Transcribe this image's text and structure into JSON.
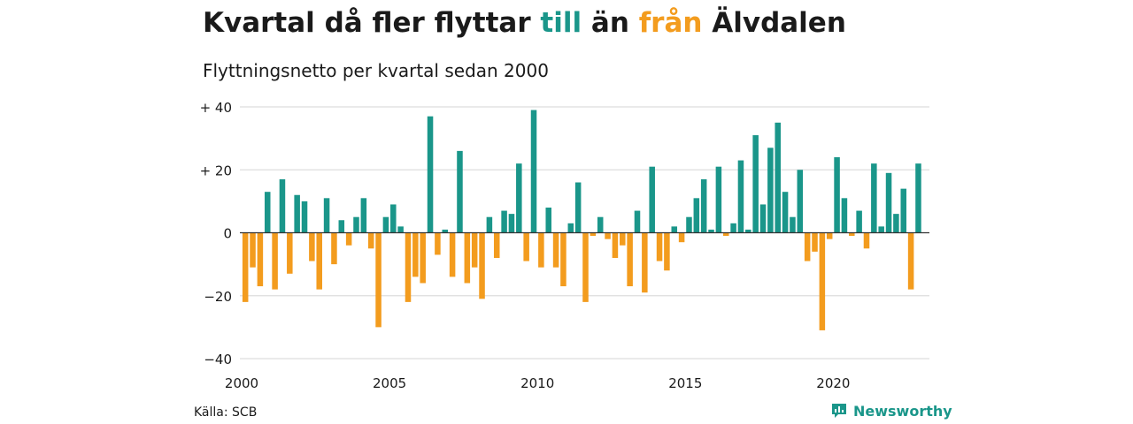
{
  "header": {
    "title_prefix": "Kvartal då fler flyttar ",
    "title_till": "till",
    "title_mid": " än ",
    "title_fran": "från",
    "title_suffix": " Älvdalen",
    "subtitle": "Flyttningsnetto per kvartal sedan 2000"
  },
  "footer": {
    "source": "Källa: SCB",
    "brand": "Newsworthy"
  },
  "colors": {
    "positive": "#1a968a",
    "negative": "#f39c1e",
    "grid": "#dddddd",
    "axis": "#555555"
  },
  "chart_data": {
    "type": "bar",
    "x_start": 2000.0,
    "x_step": 0.25,
    "ylim": [
      -40,
      40
    ],
    "yticks": [
      {
        "value": 40,
        "label": "+ 40"
      },
      {
        "value": 20,
        "label": "+ 20"
      },
      {
        "value": 0,
        "label": "0"
      },
      {
        "value": -20,
        "label": "−20"
      },
      {
        "value": -40,
        "label": "−40"
      }
    ],
    "xticks": [
      {
        "value": 2000,
        "label": "2000"
      },
      {
        "value": 2005,
        "label": "2005"
      },
      {
        "value": 2010,
        "label": "2010"
      },
      {
        "value": 2015,
        "label": "2015"
      },
      {
        "value": 2020,
        "label": "2020"
      }
    ],
    "xlim": [
      2000,
      2023.25
    ],
    "grid": true,
    "values": [
      -22,
      -11,
      -17,
      13,
      -18,
      17,
      -13,
      12,
      10,
      -9,
      -18,
      11,
      -10,
      4,
      -4,
      5,
      11,
      -5,
      -30,
      5,
      9,
      2,
      -22,
      -14,
      -16,
      37,
      -7,
      1,
      -14,
      26,
      -16,
      -11,
      -21,
      5,
      -8,
      7,
      6,
      22,
      -9,
      39,
      -11,
      8,
      -11,
      -17,
      3,
      16,
      -22,
      -1,
      5,
      -2,
      -8,
      -4,
      -17,
      7,
      -19,
      21,
      -9,
      -12,
      2,
      -3,
      5,
      11,
      17,
      1,
      21,
      -1,
      3,
      23,
      1,
      31,
      9,
      27,
      35,
      13,
      5,
      20,
      -9,
      -6,
      -31,
      -2,
      24,
      11,
      -1,
      7,
      -5,
      22,
      2,
      19,
      6,
      14,
      -18,
      22
    ]
  }
}
